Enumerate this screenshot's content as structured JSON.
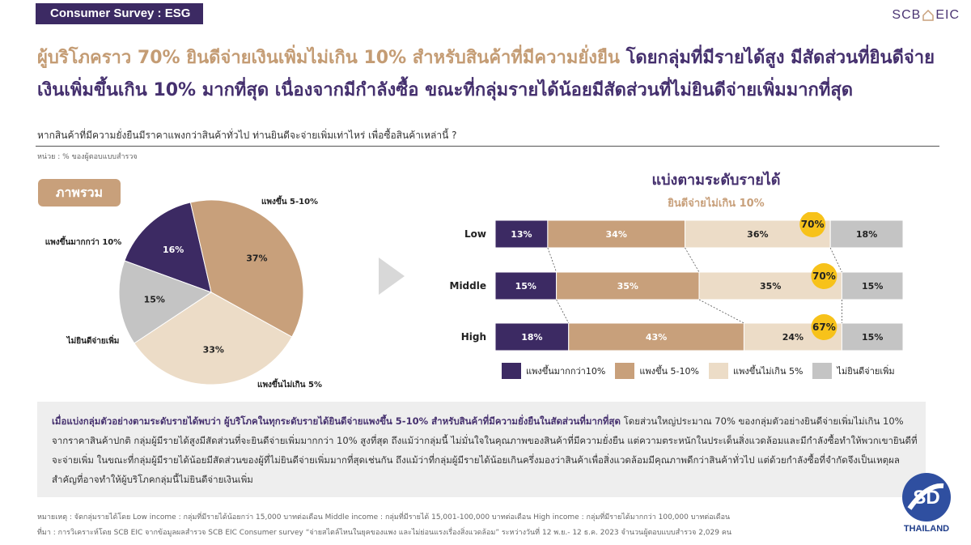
{
  "header": {
    "tag": "Consumer Survey : ESG",
    "logo_left": "SCB",
    "logo_right": "EIC"
  },
  "headline": {
    "part_a": "ผู้บริโภคราว 70% ยินดีจ่ายเงินเพิ่มไม่เกิน 10% สำหรับสินค้าที่มีความยั่งยืน",
    "part_b": " โดยกลุ่มที่มีรายได้สูง มีสัดส่วนที่ยินดีจ่ายเงินเพิ่มขึ้นเกิน 10% มากที่สุด เนื่องจากมีกำลังซื้อ ขณะที่กลุ่มรายได้น้อยมีสัดส่วนที่ไม่ยินดีจ่ายเพิ่มมากที่สุด"
  },
  "question": "หากสินค้าที่มีความยั่งยืนมีราคาแพงกว่าสินค้าทั่วไป ท่านยินดีจะจ่ายเพิ่มเท่าไหร่ เพื่อซื้อสินค้าเหล่านี้ ?",
  "unit": "หน่วย : % ของผู้ตอบแบบสำรวจ",
  "overall_chip": "ภาพรวม",
  "colors": {
    "purple": "#3c2a63",
    "tan": "#c8a07b",
    "beige": "#ecdcc7",
    "grey": "#c4c4c4",
    "gold": "#f7c21a"
  },
  "chart_data": [
    {
      "type": "pie",
      "title": "ภาพรวม",
      "slices": [
        {
          "label": "แพงขึ้นมากกว่า 10%",
          "value": 16,
          "text": "16%"
        },
        {
          "label": "แพงขึ้น 5-10%",
          "value": 37,
          "text": "37%"
        },
        {
          "label": "แพงขึ้นไม่เกิน 5%",
          "value": 33,
          "text": "33%"
        },
        {
          "label": "ไม่ยินดีจ่ายเพิ่ม",
          "value": 15,
          "text": "15%"
        }
      ]
    },
    {
      "type": "bar",
      "orientation": "horizontal",
      "stacked": true,
      "title": "แบ่งตามระดับรายได้",
      "subtitle": "ยินดีจ่ายไม่เกิน 10%",
      "categories": [
        "Low",
        "Middle",
        "High"
      ],
      "series": [
        {
          "name": "แพงขึ้นมากกว่า10%",
          "values": [
            13,
            15,
            18
          ],
          "labels": [
            "13%",
            "15%",
            "18%"
          ]
        },
        {
          "name": "แพงขึ้น 5-10%",
          "values": [
            34,
            35,
            43
          ],
          "labels": [
            "34%",
            "35%",
            "43%"
          ]
        },
        {
          "name": "แพงขึ้นไม่เกิน 5%",
          "values": [
            36,
            35,
            24
          ],
          "labels": [
            "36%",
            "35%",
            "24%"
          ]
        },
        {
          "name": "ไม่ยินดีจ่ายเพิ่ม",
          "values": [
            18,
            15,
            15
          ],
          "labels": [
            "18%",
            "15%",
            "15%"
          ]
        }
      ],
      "callouts": [
        "70%",
        "70%",
        "67%"
      ],
      "legend_position": "bottom"
    }
  ],
  "summary": {
    "em": "เมื่อแบ่งกลุ่มตัวอย่างตามระดับรายได้พบว่า ผู้บริโภคในทุกระดับรายได้ยินดีจ่ายแพงขึ้น 5-10% สำหรับสินค้าที่มีความยั่งยืนในสัดส่วนที่มากที่สุด",
    "rest": " โดยส่วนใหญ่ประมาณ 70% ของกลุ่มตัวอย่างยินดีจ่ายเพิ่มไม่เกิน 10% จากราคาสินค้าปกติ กลุ่มผู้มีรายได้สูงมีสัดส่วนที่จะยินดีจ่ายเพิ่มมากกว่า 10% สูงที่สุด ถึงแม้ว่ากลุ่มนี้ ไม่มั่นใจในคุณภาพของสินค้าที่มีความยั่งยืน แต่ความตระหนักในประเด็นสิ่งแวดล้อมและมีกำลังซื้อทำให้พวกเขายินดีที่จะจ่ายเพิ่ม ในขณะที่กลุ่มผู้มีรายได้น้อยมีสัดส่วนของผู้ที่ไม่ยินดีจ่ายเพิ่มมากที่สุดเช่นกัน ถึงแม้ว่าที่กลุ่มผู้มีรายได้น้อยเกินครึ่งมองว่าสินค้าเพื่อสิ่งแวดล้อมมีคุณภาพดีกว่าสินค้าทั่วไป แต่ด้วยกำลังซื้อที่จำกัดจึงเป็นเหตุผลสำคัญที่อาจทำให้ผู้บริโภคกลุ่มนี้ไม่ยินดีจ่ายเงินเพิ่ม"
  },
  "footnotes": {
    "note": "หมายเหตุ : จัดกลุ่มรายได้โดย Low income : กลุ่มที่มีรายได้น้อยกว่า 15,000 บาทต่อเดือน Middle income : กลุ่มที่มีรายได้ 15,001-100,000 บาทต่อเดือน High income : กลุ่มที่มีรายได้มากกว่า 100,000 บาทต่อเดือน",
    "source": "ที่มา : การวิเคราะห์โดย SCB EIC จากข้อมูลผลสำรวจ SCB EIC Consumer survey “จ่ายสไตล์ไหนในยุคของแพง และไม่ย่อนแรงเรื่องสิ่งแวดล้อม” ระหว่างวันที่ 12 พ.ย.- 12 ธ.ค. 2023 จำนวนผู้ตอบแบบสำรวจ 2,029 คน"
  },
  "badge": {
    "mark": "SD",
    "label": "THAILAND"
  }
}
